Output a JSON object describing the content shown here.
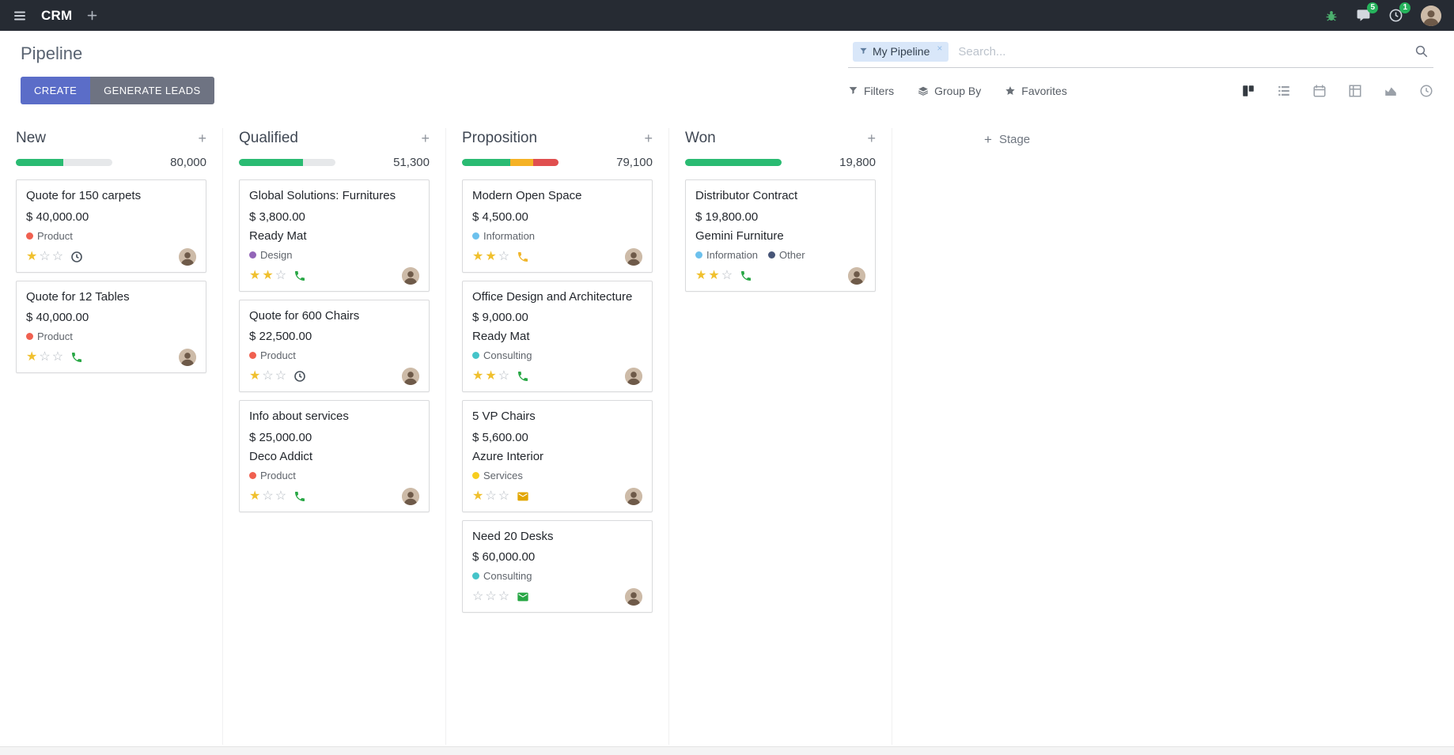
{
  "navbar": {
    "app_name": "CRM",
    "messages_badge": "5",
    "activities_badge": "1"
  },
  "control_panel": {
    "title": "Pipeline",
    "search": {
      "facet_label": "My Pipeline",
      "facet_remove": "×",
      "placeholder": "Search..."
    },
    "create_label": "CREATE",
    "generate_leads_label": "GENERATE LEADS",
    "filters_label": "Filters",
    "group_by_label": "Group By",
    "favorites_label": "Favorites"
  },
  "kanban": {
    "add_stage_label": "Stage",
    "columns": [
      {
        "name": "New",
        "counter": "80,000",
        "progress_segments": [
          {
            "color": "#2abb72",
            "pct": 49
          }
        ],
        "cards": [
          {
            "title": "Quote for 150 carpets",
            "amount": "$ 40,000.00",
            "partner": "",
            "tags": [
              {
                "label": "Product",
                "color": "#f06050"
              }
            ],
            "stars": 1,
            "activity": {
              "type": "clock",
              "color": "#49525c"
            }
          },
          {
            "title": "Quote for 12 Tables",
            "amount": "$ 40,000.00",
            "partner": "",
            "tags": [
              {
                "label": "Product",
                "color": "#f06050"
              }
            ],
            "stars": 1,
            "activity": {
              "type": "phone",
              "color": "#28a745"
            }
          }
        ]
      },
      {
        "name": "Qualified",
        "counter": "51,300",
        "progress_segments": [
          {
            "color": "#2abb72",
            "pct": 66
          }
        ],
        "cards": [
          {
            "title": "Global Solutions: Furnitures",
            "amount": "$ 3,800.00",
            "partner": "Ready Mat",
            "tags": [
              {
                "label": "Design",
                "color": "#9365b8"
              }
            ],
            "stars": 2,
            "activity": {
              "type": "phone",
              "color": "#28a745"
            }
          },
          {
            "title": "Quote for 600 Chairs",
            "amount": "$ 22,500.00",
            "partner": "",
            "tags": [
              {
                "label": "Product",
                "color": "#f06050"
              }
            ],
            "stars": 1,
            "activity": {
              "type": "clock",
              "color": "#49525c"
            }
          },
          {
            "title": "Info about services",
            "amount": "$ 25,000.00",
            "partner": "Deco Addict",
            "tags": [
              {
                "label": "Product",
                "color": "#f06050"
              }
            ],
            "stars": 1,
            "activity": {
              "type": "phone",
              "color": "#28a745"
            }
          }
        ]
      },
      {
        "name": "Proposition",
        "counter": "79,100",
        "progress_segments": [
          {
            "color": "#2abb72",
            "pct": 50
          },
          {
            "color": "#f5b225",
            "pct": 24
          },
          {
            "color": "#e04f4f",
            "pct": 26
          }
        ],
        "cards": [
          {
            "title": "Modern Open Space",
            "amount": "$ 4,500.00",
            "partner": "",
            "tags": [
              {
                "label": "Information",
                "color": "#6cc1ed"
              }
            ],
            "stars": 2,
            "activity": {
              "type": "phone",
              "color": "#f0b52a"
            }
          },
          {
            "title": "Office Design and Architecture",
            "amount": "$ 9,000.00",
            "partner": "Ready Mat",
            "tags": [
              {
                "label": "Consulting",
                "color": "#45c4c9"
              }
            ],
            "stars": 2,
            "activity": {
              "type": "phone",
              "color": "#28a745"
            }
          },
          {
            "title": "5 VP Chairs",
            "amount": "$ 5,600.00",
            "partner": "Azure Interior",
            "tags": [
              {
                "label": "Services",
                "color": "#f7cd1f"
              }
            ],
            "stars": 1,
            "activity": {
              "type": "envelope",
              "color": "#e2a600"
            }
          },
          {
            "title": "Need 20 Desks",
            "amount": "$ 60,000.00",
            "partner": "",
            "tags": [
              {
                "label": "Consulting",
                "color": "#45c4c9"
              }
            ],
            "stars": 0,
            "activity": {
              "type": "envelope",
              "color": "#28a745"
            }
          }
        ]
      },
      {
        "name": "Won",
        "counter": "19,800",
        "progress_segments": [
          {
            "color": "#2abb72",
            "pct": 100
          }
        ],
        "cards": [
          {
            "title": "Distributor Contract",
            "amount": "$ 19,800.00",
            "partner": "Gemini Furniture",
            "tags": [
              {
                "label": "Information",
                "color": "#6cc1ed"
              },
              {
                "label": "Other",
                "color": "#475577"
              }
            ],
            "stars": 2,
            "activity": {
              "type": "phone",
              "color": "#28a745"
            }
          }
        ]
      }
    ]
  }
}
